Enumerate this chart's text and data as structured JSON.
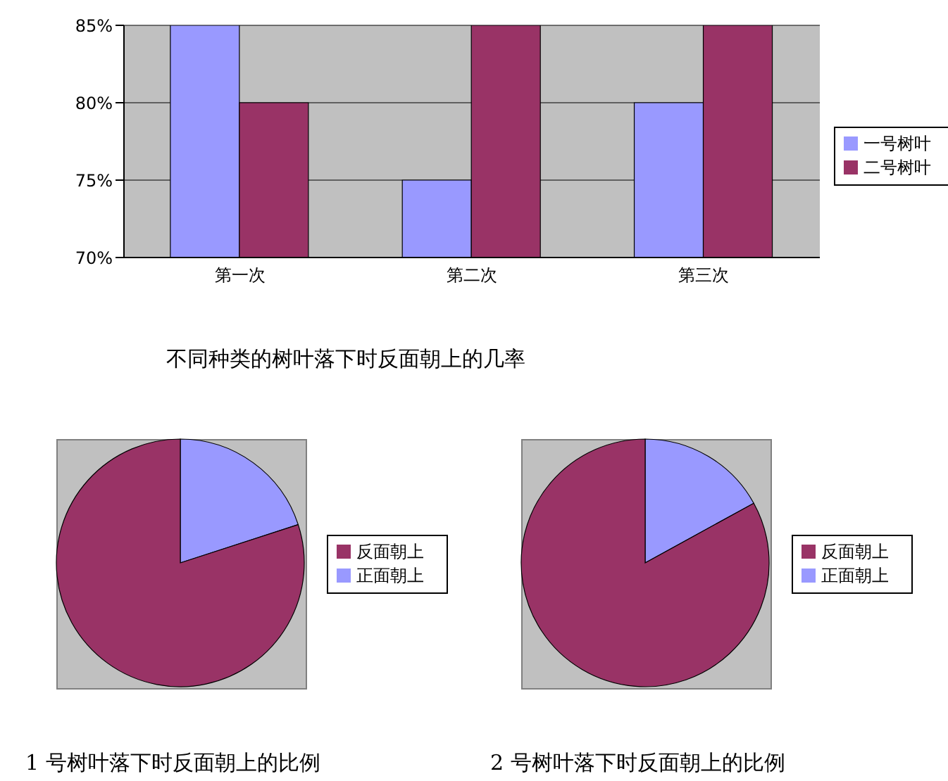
{
  "chart_data": [
    {
      "type": "bar",
      "title": "不同种类的树叶落下时反面朝上的几率",
      "categories": [
        "第一次",
        "第二次",
        "第三次"
      ],
      "series": [
        {
          "name": "一号树叶",
          "color": "#9999ff",
          "values": [
            85,
            75,
            80
          ]
        },
        {
          "name": "二号树叶",
          "color": "#993366",
          "values": [
            80,
            85,
            85
          ]
        }
      ],
      "ylim": [
        70,
        85
      ],
      "yticks": [
        {
          "value": 70,
          "label": "70%"
        },
        {
          "value": 75,
          "label": "75%"
        },
        {
          "value": 80,
          "label": "80%"
        },
        {
          "value": 85,
          "label": "85%"
        }
      ],
      "grid": "y",
      "legend": "right"
    },
    {
      "type": "pie",
      "title": "1 号树叶落下时反面朝上的比例",
      "categories": [
        "正面朝上",
        "反面朝上"
      ],
      "values": [
        20,
        80
      ],
      "colors": [
        "#9999ff",
        "#993366"
      ],
      "legend": "right"
    },
    {
      "type": "pie",
      "title": "2 号树叶落下时反面朝上的比例",
      "categories": [
        "正面朝上",
        "反面朝上"
      ],
      "values": [
        17,
        83
      ],
      "colors": [
        "#9999ff",
        "#993366"
      ],
      "legend": "right"
    }
  ]
}
